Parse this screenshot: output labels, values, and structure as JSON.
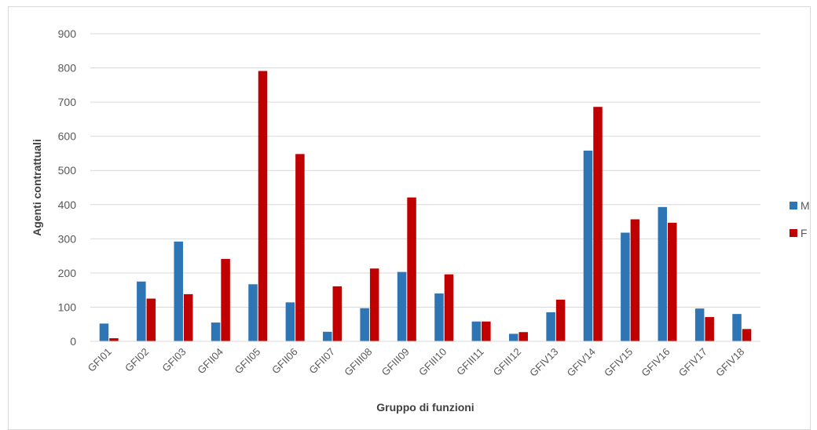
{
  "chart_data": {
    "type": "bar",
    "title": "",
    "xlabel": "Gruppo di funzioni",
    "ylabel": "Agenti contrattuali",
    "ylim": [
      0,
      900
    ],
    "yticks": [
      0,
      100,
      200,
      300,
      400,
      500,
      600,
      700,
      800,
      900
    ],
    "grid": true,
    "legend_position": "right",
    "categories": [
      "GFI01",
      "GFI02",
      "GFI03",
      "GFII04",
      "GFII05",
      "GFII06",
      "GFII07",
      "GFIII08",
      "GFIII09",
      "GFIII10",
      "GFIII11",
      "GFIII12",
      "GFIV13",
      "GFIV14",
      "GFIV15",
      "GFIV16",
      "GFIV17",
      "GFIV18"
    ],
    "series": [
      {
        "name": "M",
        "color": "#2e75b6",
        "values": [
          52,
          175,
          292,
          55,
          167,
          114,
          28,
          97,
          203,
          140,
          58,
          22,
          85,
          558,
          318,
          393,
          96,
          80
        ]
      },
      {
        "name": "F",
        "color": "#c00000",
        "values": [
          9,
          125,
          138,
          241,
          791,
          548,
          161,
          213,
          421,
          196,
          58,
          27,
          122,
          686,
          357,
          347,
          71,
          36
        ]
      }
    ]
  }
}
